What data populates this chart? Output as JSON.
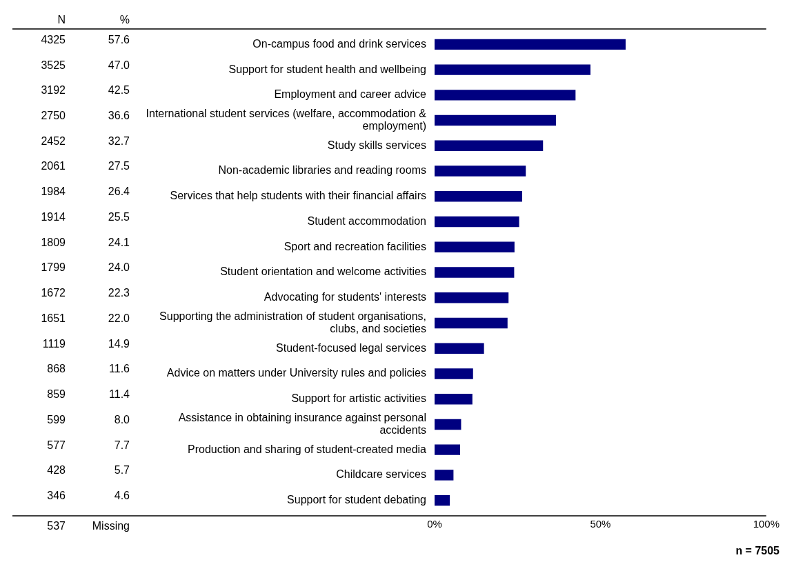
{
  "chart_data": {
    "type": "bar",
    "orientation": "horizontal",
    "color": "#000080",
    "legend": false,
    "grid": false,
    "categories": [
      "On-campus food and drink services",
      "Support for student health and wellbeing",
      "Employment and career advice",
      "International student services (welfare, accommodation & employment)",
      "Study skills services",
      "Non-academic libraries and reading rooms",
      "Services that help students with their financial affairs",
      "Student accommodation",
      "Sport and recreation facilities",
      "Student orientation and welcome activities",
      "Advocating for students' interests",
      "Supporting the administration of student organisations, clubs, and societies",
      "Student-focused legal services",
      "Advice on matters under University rules and policies",
      "Support for artistic activities",
      "Assistance in obtaining insurance against personal accidents",
      "Production and sharing of student-created media",
      "Childcare services",
      "Support for student debating"
    ],
    "values": [
      57.6,
      47.0,
      42.5,
      36.6,
      32.7,
      27.5,
      26.4,
      25.5,
      24.1,
      24.0,
      22.3,
      22.0,
      14.9,
      11.6,
      11.4,
      8.0,
      7.7,
      5.7,
      4.6
    ],
    "value_labels": [
      "57.6",
      "47.0",
      "42.5",
      "36.6",
      "32.7",
      "27.5",
      "26.4",
      "25.5",
      "24.1",
      "24.0",
      "22.3",
      "22.0",
      "14.9",
      "11.6",
      "11.4",
      "8.0",
      "7.7",
      "5.7",
      "4.6"
    ],
    "xlim": [
      0,
      100
    ],
    "xticks": [
      {
        "value": 0,
        "label": "0%"
      },
      {
        "value": 50,
        "label": "50%"
      },
      {
        "value": 100,
        "label": "100%"
      }
    ],
    "annotations": [
      "N",
      "%",
      "537",
      "Missing",
      "n = 7505",
      "4325",
      "3525",
      "3192",
      "2750",
      "2452",
      "2061",
      "1984",
      "1914",
      "1809",
      "1799",
      "1672",
      "1651",
      "1119",
      "868",
      "859",
      "599",
      "577",
      "428",
      "346"
    ]
  }
}
